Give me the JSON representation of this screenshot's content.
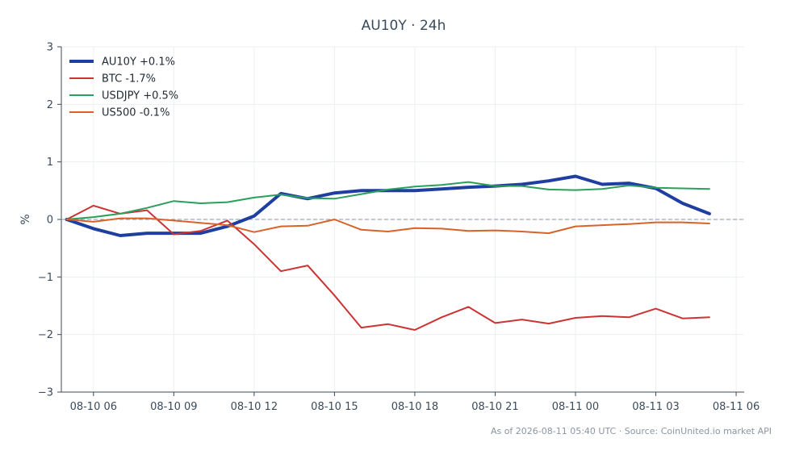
{
  "chart_data": {
    "type": "line",
    "title": "AU10Y · 24h",
    "ylabel": "%",
    "xlabel": "",
    "ylim": [
      -3,
      3
    ],
    "yticks": [
      3,
      2,
      1,
      0,
      -1,
      -2,
      -3
    ],
    "ytick_labels": [
      "3",
      "2",
      "1",
      "0",
      "−1",
      "−2",
      "−3"
    ],
    "xlim": [
      "2026-08-10 04:48",
      "2026-08-11 06:18"
    ],
    "xticks": [
      "2026-08-10 06:00",
      "2026-08-10 09:00",
      "2026-08-10 12:00",
      "2026-08-10 15:00",
      "2026-08-10 18:00",
      "2026-08-10 21:00",
      "2026-08-11 00:00",
      "2026-08-11 03:00",
      "2026-08-11 06:00"
    ],
    "xtick_labels": [
      "08-10 06",
      "08-10 09",
      "08-10 12",
      "08-10 15",
      "08-10 18",
      "08-10 21",
      "08-11 00",
      "08-11 03",
      "08-11 06"
    ],
    "x": [
      "2026-08-10 05:00",
      "2026-08-10 06:00",
      "2026-08-10 07:00",
      "2026-08-10 08:00",
      "2026-08-10 09:00",
      "2026-08-10 10:00",
      "2026-08-10 11:00",
      "2026-08-10 12:00",
      "2026-08-10 13:00",
      "2026-08-10 14:00",
      "2026-08-10 15:00",
      "2026-08-10 16:00",
      "2026-08-10 17:00",
      "2026-08-10 18:00",
      "2026-08-10 19:00",
      "2026-08-10 20:00",
      "2026-08-10 21:00",
      "2026-08-10 22:00",
      "2026-08-10 23:00",
      "2026-08-11 00:00",
      "2026-08-11 01:00",
      "2026-08-11 02:00",
      "2026-08-11 03:00",
      "2026-08-11 04:00",
      "2026-08-11 05:00"
    ],
    "grid": true,
    "zero_line": true,
    "legend_position": "top-left",
    "series": [
      {
        "name": "AU10Y +0.1%",
        "color": "#1f3fa0",
        "width": 4,
        "values": [
          0,
          -0.16,
          -0.28,
          -0.24,
          -0.24,
          -0.24,
          -0.12,
          0.06,
          0.45,
          0.36,
          0.46,
          0.5,
          0.5,
          0.5,
          0.53,
          0.56,
          0.58,
          0.61,
          0.67,
          0.75,
          0.61,
          0.63,
          0.54,
          0.28,
          0.1
        ]
      },
      {
        "name": "BTC -1.7%",
        "color": "#cc3333",
        "width": 2,
        "values": [
          0,
          0.24,
          0.1,
          0.16,
          -0.26,
          -0.2,
          -0.02,
          -0.43,
          -0.9,
          -0.8,
          -1.32,
          -1.88,
          -1.82,
          -1.92,
          -1.7,
          -1.52,
          -1.8,
          -1.74,
          -1.81,
          -1.71,
          -1.68,
          -1.7,
          -1.55,
          -1.72,
          -1.7
        ]
      },
      {
        "name": "USDJPY +0.5%",
        "color": "#2aa05a",
        "width": 2,
        "values": [
          0,
          0.04,
          0.1,
          0.2,
          0.32,
          0.28,
          0.3,
          0.38,
          0.43,
          0.37,
          0.36,
          0.44,
          0.52,
          0.57,
          0.6,
          0.65,
          0.58,
          0.58,
          0.52,
          0.51,
          0.53,
          0.59,
          0.55,
          0.54,
          0.53
        ]
      },
      {
        "name": "US500 -0.1%",
        "color": "#d9622b",
        "width": 2,
        "values": [
          0,
          -0.04,
          0.02,
          0.02,
          -0.02,
          -0.06,
          -0.1,
          -0.22,
          -0.12,
          -0.11,
          0,
          -0.18,
          -0.21,
          -0.15,
          -0.16,
          -0.2,
          -0.19,
          -0.21,
          -0.24,
          -0.12,
          -0.1,
          -0.08,
          -0.05,
          -0.05,
          -0.07
        ]
      }
    ],
    "footer": "As of 2026-08-11 05:40 UTC · Source: CoinUnited.io market API"
  }
}
